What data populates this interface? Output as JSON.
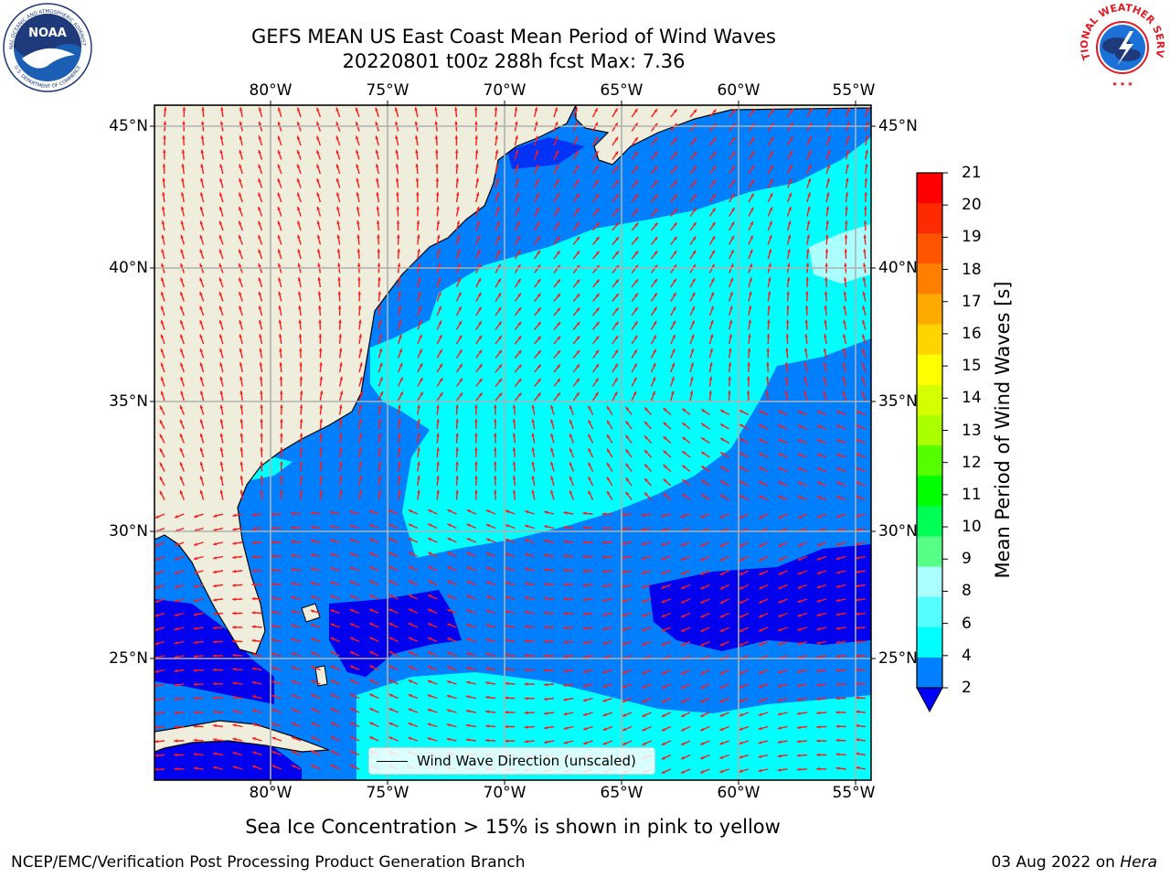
{
  "header": {
    "title_line1": "GEFS MEAN US East Coast Mean Period of Wind Waves",
    "title_line2": "20220801 t00z 288h fcst   Max: 7.36"
  },
  "logos": {
    "left": "noaa-logo",
    "left_text_top": "NATIONAL OCEANIC AND ATMOSPHERIC ADMINISTRATION",
    "left_text_bottom": "U.S. DEPARTMENT OF COMMERCE",
    "left_center": "NOAA",
    "right": "nws-logo",
    "right_text": "NATIONAL WEATHER SERVICE"
  },
  "map": {
    "lon_labels": [
      "80°W",
      "75°W",
      "70°W",
      "65°W",
      "60°W",
      "55°W"
    ],
    "lat_labels": [
      "45°N",
      "40°N",
      "35°N",
      "30°N",
      "25°N"
    ],
    "lon_range": [
      -85,
      -54.3
    ],
    "lat_range": [
      20.5,
      46
    ],
    "colors": {
      "land": "#efeedc",
      "ocean_low": "#0000ee",
      "ocean_2_4": "#0080ff",
      "ocean_4_6": "#00ffff",
      "ocean_6_8": "#7ffff5",
      "arrow": "#ff1a1a",
      "grid": "#b0b0b0"
    },
    "legend_label": "Wind Wave Direction (unscaled)"
  },
  "colorbar": {
    "title": "Mean Period of Wind Waves [s]",
    "ticks": [
      "21",
      "20",
      "19",
      "18",
      "17",
      "16",
      "15",
      "14",
      "13",
      "12",
      "11",
      "10",
      "9",
      "8",
      "6",
      "4",
      "2"
    ],
    "colors": [
      "#ff0000",
      "#ff2a00",
      "#ff5500",
      "#ff8000",
      "#ffaa00",
      "#ffd500",
      "#ffff00",
      "#d4ff00",
      "#aaff00",
      "#55ff00",
      "#00ff00",
      "#00ff55",
      "#55ff88",
      "#aaffff",
      "#55ffff",
      "#00ffff",
      "#0080ff"
    ],
    "under_color": "#0000ff"
  },
  "note": "Sea Ice Concentration > 15% is shown in pink to yellow",
  "footer": {
    "left": "NCEP/EMC/Verification Post Processing Product Generation Branch",
    "right_date": "03 Aug 2022 on ",
    "right_host": "Hera"
  }
}
